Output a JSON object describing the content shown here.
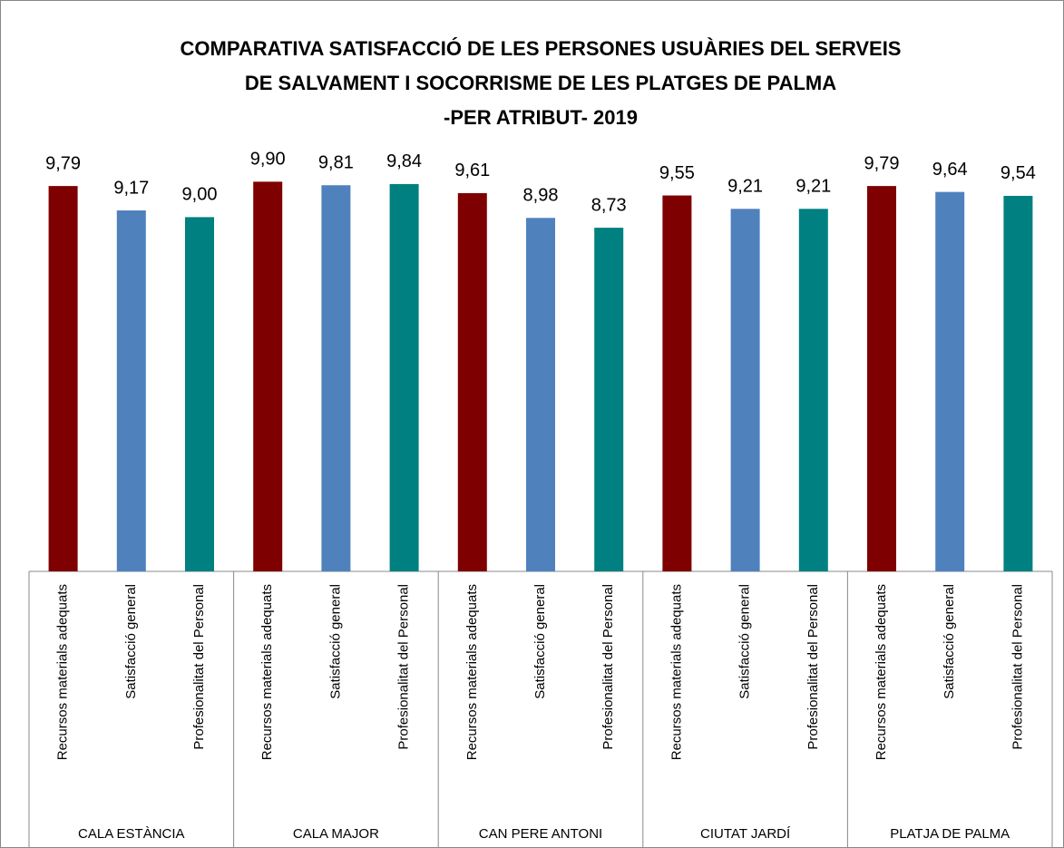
{
  "chart_data": {
    "type": "bar",
    "title": [
      "COMPARATIVA SATISFACCIÓ DE LES PERSONES USUÀRIES DEL SERVEIS",
      "DE SALVAMENT I SOCORRISME DE LES PLATGES DE PALMA",
      "-PER ATRIBUT- 2019"
    ],
    "categories": [
      "CALA ESTÀNCIA",
      "CALA MAJOR",
      "CAN PERE ANTONI",
      "CIUTAT JARDÍ",
      "PLATJA DE PALMA"
    ],
    "series": [
      {
        "name": "Recursos materials adequats",
        "color": "#7f0000",
        "values": [
          9.79,
          9.9,
          9.61,
          9.55,
          9.79
        ],
        "value_labels": [
          "9,79",
          "9,90",
          "9,61",
          "9,55",
          "9,79"
        ]
      },
      {
        "name": "Satisfacció general",
        "color": "#4f81bd",
        "values": [
          9.17,
          9.81,
          8.98,
          9.21,
          9.64
        ],
        "value_labels": [
          "9,17",
          "9,81",
          "8,98",
          "9,21",
          "9,64"
        ]
      },
      {
        "name": "Profesionalitat del Personal",
        "color": "#008080",
        "values": [
          9.0,
          9.84,
          8.73,
          9.21,
          9.54
        ],
        "value_labels": [
          "9,00",
          "9,84",
          "8,73",
          "9,21",
          "9,54"
        ]
      }
    ],
    "ylim": [
      0,
      10
    ]
  }
}
